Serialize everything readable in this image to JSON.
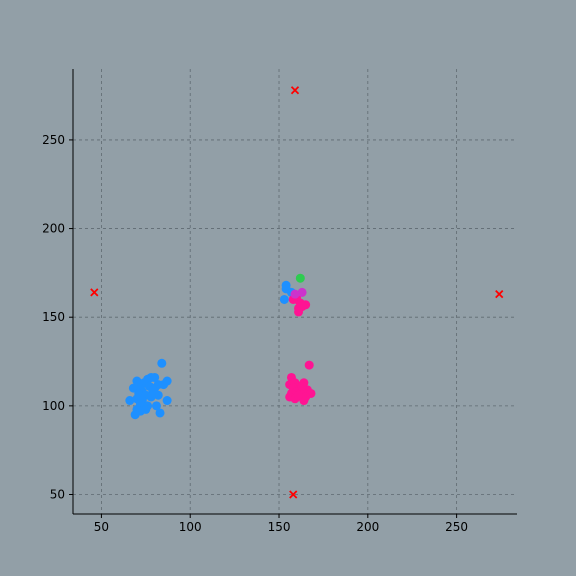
{
  "chart_data": {
    "type": "scatter",
    "title": "",
    "xlabel": "",
    "ylabel": "",
    "xlim": [
      34,
      284
    ],
    "ylim": [
      39,
      290
    ],
    "xticks": [
      50,
      100,
      150,
      200,
      250
    ],
    "yticks": [
      50,
      100,
      150,
      200,
      250
    ],
    "grid": true,
    "colors": {
      "background": "#929fa7",
      "blue": "#1e90ff",
      "pink": "#ff1493",
      "magenta": "#cc33cc",
      "green": "#2ecc50",
      "marker": "#ff0000"
    },
    "series": [
      {
        "color": "blue",
        "marker": "circle",
        "points": [
          [
            84,
            124
          ],
          [
            87,
            114
          ],
          [
            80,
            116
          ],
          [
            78,
            116
          ],
          [
            76,
            115
          ],
          [
            70,
            114
          ],
          [
            74,
            113
          ],
          [
            82,
            112
          ],
          [
            85,
            112
          ],
          [
            68,
            110
          ],
          [
            72,
            110
          ],
          [
            77,
            111
          ],
          [
            80,
            110
          ],
          [
            73,
            108
          ],
          [
            79,
            108
          ],
          [
            71,
            107
          ],
          [
            82,
            106
          ],
          [
            75,
            106
          ],
          [
            78,
            105
          ],
          [
            70,
            104
          ],
          [
            66,
            103
          ],
          [
            73,
            103
          ],
          [
            87,
            103
          ],
          [
            72,
            101
          ],
          [
            76,
            100
          ],
          [
            81,
            100
          ],
          [
            70,
            98
          ],
          [
            75,
            98
          ],
          [
            72,
            97
          ],
          [
            83,
            96
          ],
          [
            69,
            95
          ],
          [
            79,
            109
          ],
          [
            154,
            168
          ],
          [
            154,
            166
          ],
          [
            157,
            164
          ],
          [
            153,
            160
          ]
        ]
      },
      {
        "color": "pink",
        "marker": "circle",
        "points": [
          [
            167,
            123
          ],
          [
            157,
            116
          ],
          [
            156,
            112
          ],
          [
            159,
            113
          ],
          [
            164,
            113
          ],
          [
            161,
            111
          ],
          [
            158,
            110
          ],
          [
            163,
            109
          ],
          [
            166,
            109
          ],
          [
            160,
            108
          ],
          [
            157,
            107
          ],
          [
            162,
            107
          ],
          [
            168,
            107
          ],
          [
            156,
            105
          ],
          [
            165,
            105
          ],
          [
            160,
            105
          ],
          [
            164,
            103
          ],
          [
            159,
            104
          ],
          [
            161,
            106
          ],
          [
            163,
            111
          ],
          [
            160,
            160
          ],
          [
            162,
            158
          ],
          [
            165,
            157
          ],
          [
            158,
            160
          ],
          [
            161,
            155
          ],
          [
            163,
            156
          ],
          [
            161,
            153
          ],
          [
            160,
            162
          ]
        ]
      },
      {
        "color": "magenta",
        "marker": "circle",
        "points": [
          [
            163,
            164
          ],
          [
            159,
            163
          ]
        ]
      },
      {
        "color": "green",
        "marker": "circle",
        "points": [
          [
            162,
            172
          ]
        ]
      },
      {
        "color": "marker",
        "marker": "x",
        "points": [
          [
            159,
            278
          ],
          [
            46,
            164
          ],
          [
            274,
            163
          ],
          [
            158,
            50
          ]
        ]
      }
    ]
  }
}
